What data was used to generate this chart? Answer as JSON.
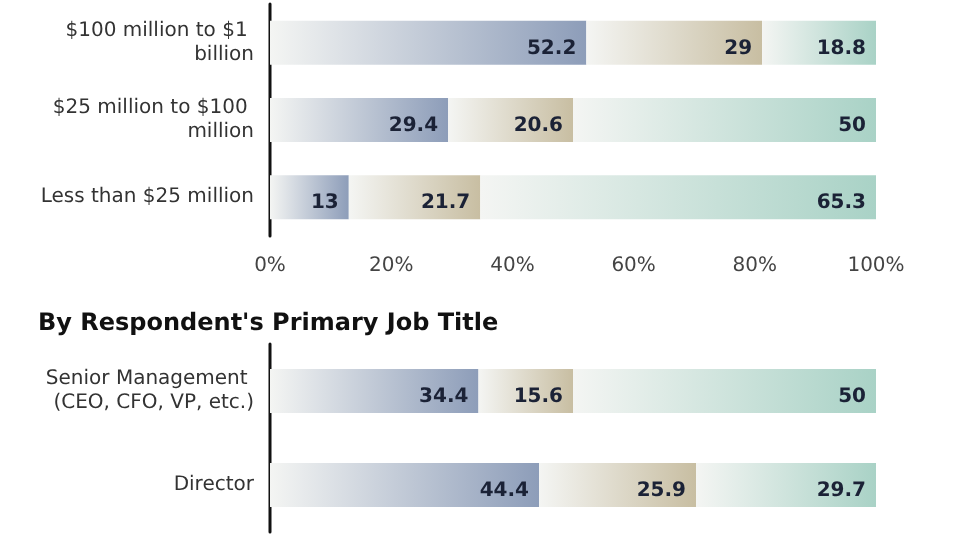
{
  "chart_data": [
    {
      "type": "bar",
      "orientation": "horizontal",
      "stacked": true,
      "data_labels": true,
      "grid": false,
      "categories": [
        "$100 million to $1 billion",
        "$25 million to $100 million",
        "Less than $25 million"
      ],
      "series": [
        {
          "color": "#8d9db9",
          "values": [
            52.2,
            29.4,
            13
          ]
        },
        {
          "color": "#c8bea2",
          "values": [
            29,
            20.6,
            21.7
          ]
        },
        {
          "color": "#a9d2c6",
          "values": [
            18.8,
            50,
            65.3
          ]
        }
      ],
      "xlim": [
        0,
        100
      ],
      "xticks": [
        {
          "value": 0,
          "label": "0%"
        },
        {
          "value": 20,
          "label": "20%"
        },
        {
          "value": 40,
          "label": "40%"
        },
        {
          "value": 60,
          "label": "60%"
        },
        {
          "value": 80,
          "label": "80%"
        },
        {
          "value": 100,
          "label": "100%"
        }
      ]
    },
    {
      "type": "bar",
      "orientation": "horizontal",
      "stacked": true,
      "data_labels": true,
      "grid": false,
      "tick_labels": "y",
      "title": "By Respondent's Primary Job Title",
      "categories": [
        "Senior Management (CEO, CFO, VP, etc.)",
        "Director"
      ],
      "series": [
        {
          "color": "#8d9db9",
          "values": [
            34.4,
            44.4
          ]
        },
        {
          "color": "#c8bea2",
          "values": [
            15.6,
            25.9
          ]
        },
        {
          "color": "#a9d2c6",
          "values": [
            50,
            29.7
          ]
        }
      ],
      "xlim": [
        0,
        100
      ]
    }
  ]
}
